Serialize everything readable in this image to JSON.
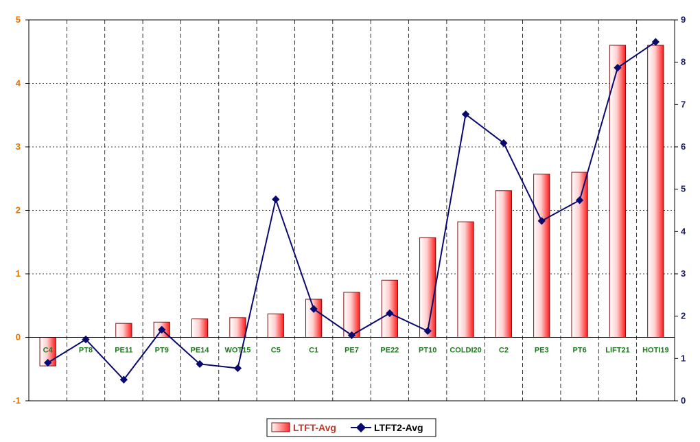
{
  "chart_data": {
    "type": "bar",
    "categories": [
      "C4",
      "PT8",
      "PE11",
      "PT9",
      "PE14",
      "WOT15",
      "C5",
      "C1",
      "PE7",
      "PE22",
      "PT10",
      "COLDI20",
      "C2",
      "PE3",
      "PT6",
      "LIFT21",
      "HOTI19"
    ],
    "series": [
      {
        "name": "LTFT-Avg",
        "type": "bar",
        "axis": "left",
        "values": [
          -0.45,
          0,
          0.22,
          0.24,
          0.29,
          0.31,
          0.37,
          0.6,
          0.71,
          0.9,
          1.57,
          1.82,
          2.31,
          2.57,
          2.6,
          4.6,
          4.6
        ]
      },
      {
        "name": "LTFT2-Avg",
        "type": "line",
        "axis": "right",
        "values": [
          0.9,
          1.45,
          0.5,
          1.68,
          0.87,
          0.77,
          4.76,
          2.17,
          1.55,
          2.07,
          1.65,
          6.77,
          6.09,
          4.25,
          4.74,
          7.87,
          8.48
        ]
      }
    ],
    "left_axis": {
      "ylim": [
        -1,
        5
      ],
      "ticks": [
        "-1",
        "0",
        "1",
        "2",
        "3",
        "4",
        "5"
      ],
      "color": "#e07000"
    },
    "right_axis": {
      "ylim": [
        0,
        9
      ],
      "ticks": [
        "0",
        "1",
        "2",
        "3",
        "4",
        "5",
        "6",
        "7",
        "8",
        "9"
      ],
      "color": "#1a1a6e"
    },
    "grid": {
      "horizontal": "dotted",
      "vertical": "dashed"
    },
    "legend": {
      "position": "bottom-center"
    },
    "colors": {
      "bar_edge": "#7a1010",
      "bar_fill": "#ff2020",
      "line": "#0a0a6e",
      "category_label": "#1f7a1f"
    }
  }
}
